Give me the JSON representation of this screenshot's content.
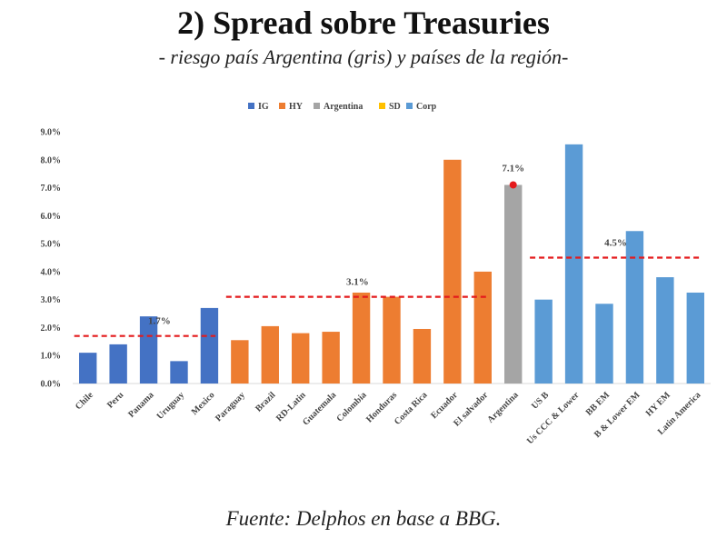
{
  "page": {
    "title": "2) Spread sobre Treasuries",
    "subtitle": "- riesgo país Argentina (gris) y países de la región-",
    "source": "Fuente: Delphos en base a BBG."
  },
  "colors": {
    "IG": "#4472C4",
    "HY": "#ED7D31",
    "Argentina": "#A5A5A5",
    "SD": "#FFC000",
    "Corp": "#5B9BD5",
    "avg_line": "#E41A1C",
    "marker": "#E41A1C"
  },
  "chart_data": {
    "type": "bar",
    "title": "2) Spread sobre Treasuries",
    "subtitle": "- riesgo país Argentina (gris) y países de la región-",
    "xlabel": "",
    "ylabel": "",
    "ylim": [
      0,
      9
    ],
    "y_ticks": [
      "0.0%",
      "1.0%",
      "2.0%",
      "3.0%",
      "4.0%",
      "5.0%",
      "6.0%",
      "7.0%",
      "8.0%",
      "9.0%"
    ],
    "grid": false,
    "legend_position": "top",
    "legend": [
      "IG",
      "HY",
      "Argentina",
      "SD",
      "Corp"
    ],
    "categories": [
      "Chile",
      "Peru",
      "Panama",
      "Uruguay",
      "Mexico",
      "Paraguay",
      "Brazil",
      "RD-Latin",
      "Guatemala",
      "Colombia",
      "Honduras",
      "Costa Rica",
      "Ecuador",
      "El salvador",
      "Argentina",
      "US B",
      "Us CCC & Lower",
      "BB EM",
      "B & Lower EM",
      "HY EM",
      "Latin America"
    ],
    "values": [
      1.1,
      1.4,
      2.4,
      0.8,
      2.7,
      1.55,
      2.05,
      1.8,
      1.85,
      3.25,
      3.1,
      1.95,
      8.0,
      4.0,
      7.1,
      3.0,
      8.55,
      2.85,
      5.45,
      3.8,
      3.25
    ],
    "groups": [
      "IG",
      "IG",
      "IG",
      "IG",
      "IG",
      "HY",
      "HY",
      "HY",
      "HY",
      "HY",
      "HY",
      "HY",
      "HY",
      "HY",
      "Argentina",
      "Corp",
      "Corp",
      "Corp",
      "Corp",
      "Corp",
      "Corp"
    ],
    "averages": [
      {
        "group": "IG",
        "label": "1.7%",
        "value": 1.7,
        "from_index": 0,
        "to_index": 4
      },
      {
        "group": "HY",
        "label": "3.1%",
        "value": 3.1,
        "from_index": 5,
        "to_index": 13
      },
      {
        "group": "Corp",
        "label": "4.5%",
        "value": 4.5,
        "from_index": 15,
        "to_index": 20
      }
    ],
    "annotations": [
      {
        "label": "7.1%",
        "index": 14,
        "value": 7.1
      }
    ]
  }
}
